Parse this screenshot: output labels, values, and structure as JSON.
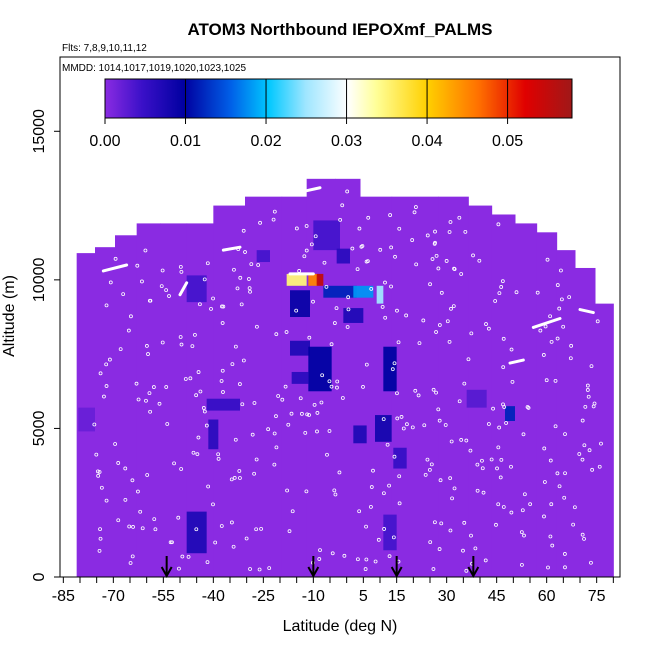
{
  "chart_data": {
    "type": "heatmap",
    "title": "ATOM3 Northbound IEPOXmf_PALMS",
    "subtitle_flights": "Flts: 7,8,9,10,11,12",
    "subtitle_dates": "MMDD: 1014,1017,1019,1020,1023,1025",
    "xlabel": "Latitude (deg N)",
    "ylabel": "Altitude (m)",
    "xlim": [
      -86,
      82
    ],
    "ylim": [
      0,
      17500
    ],
    "x_tick_labels": [
      "-85",
      "-70",
      "-55",
      "-40",
      "-25",
      "-10",
      "5",
      "15",
      "30",
      "45",
      "60",
      "75"
    ],
    "x_tick_values": [
      -85,
      -70,
      -55,
      -40,
      -25,
      -10,
      5,
      15,
      30,
      45,
      60,
      75
    ],
    "y_tick_labels": [
      "0",
      "5000",
      "10000",
      "15000"
    ],
    "y_tick_values": [
      0,
      5000,
      10000,
      15000
    ],
    "colorbar": {
      "range": [
        0,
        0.058
      ],
      "tick_labels": [
        "0.00",
        "0.01",
        "0.02",
        "0.03",
        "0.04",
        "0.05"
      ],
      "tick_values": [
        0,
        0.01,
        0.02,
        0.03,
        0.04,
        0.05
      ]
    },
    "background_value": 0.0,
    "background_color": "#8a2be2",
    "arrows_latitude": [
      -54,
      -10,
      15,
      38
    ],
    "data_envelope": [
      {
        "lat": -78,
        "alt_top": 10900
      },
      {
        "lat": -73,
        "alt_top": 11100
      },
      {
        "lat": -66,
        "alt_top": 11500
      },
      {
        "lat": -60,
        "alt_top": 11900
      },
      {
        "lat": -52,
        "alt_top": 11900
      },
      {
        "lat": -44,
        "alt_top": 11900
      },
      {
        "lat": -36,
        "alt_top": 12500
      },
      {
        "lat": -25,
        "alt_top": 12800
      },
      {
        "lat": -14,
        "alt_top": 12800
      },
      {
        "lat": -10,
        "alt_top": 13400
      },
      {
        "lat": 3,
        "alt_top": 13400
      },
      {
        "lat": 5,
        "alt_top": 12800
      },
      {
        "lat": 22,
        "alt_top": 12800
      },
      {
        "lat": 33,
        "alt_top": 12800
      },
      {
        "lat": 40,
        "alt_top": 12500
      },
      {
        "lat": 47,
        "alt_top": 12200
      },
      {
        "lat": 54,
        "alt_top": 11900
      },
      {
        "lat": 60,
        "alt_top": 11600
      },
      {
        "lat": 66,
        "alt_top": 11000
      },
      {
        "lat": 71,
        "alt_top": 10400
      },
      {
        "lat": 78,
        "alt_top": 9200
      }
    ],
    "hot_cells": [
      {
        "lat": -45,
        "alt": 9700,
        "w": 6,
        "h": 900,
        "value": 0.004
      },
      {
        "lat": -40,
        "alt": 4800,
        "w": 3,
        "h": 1000,
        "value": 0.006
      },
      {
        "lat": -45,
        "alt": 1500,
        "w": 6,
        "h": 1400,
        "value": 0.007
      },
      {
        "lat": -37,
        "alt": 5800,
        "w": 10,
        "h": 400,
        "value": 0.005
      },
      {
        "lat": -25,
        "alt": 10800,
        "w": 4,
        "h": 400,
        "value": 0.004
      },
      {
        "lat": -15,
        "alt": 10000,
        "w": 6,
        "h": 400,
        "value": 0.035
      },
      {
        "lat": -10,
        "alt": 10000,
        "w": 3,
        "h": 400,
        "value": 0.045
      },
      {
        "lat": -8,
        "alt": 10000,
        "w": 2,
        "h": 400,
        "value": 0.055
      },
      {
        "lat": -14,
        "alt": 9200,
        "w": 6,
        "h": 900,
        "value": 0.009
      },
      {
        "lat": -14,
        "alt": 7700,
        "w": 6,
        "h": 500,
        "value": 0.007
      },
      {
        "lat": -14,
        "alt": 6700,
        "w": 5,
        "h": 400,
        "value": 0.006
      },
      {
        "lat": -8,
        "alt": 7000,
        "w": 7,
        "h": 1500,
        "value": 0.01
      },
      {
        "lat": -6,
        "alt": 11500,
        "w": 8,
        "h": 1000,
        "value": 0.004
      },
      {
        "lat": -1,
        "alt": 10800,
        "w": 4,
        "h": 500,
        "value": 0.006
      },
      {
        "lat": -2,
        "alt": 9600,
        "w": 10,
        "h": 400,
        "value": 0.012
      },
      {
        "lat": 5,
        "alt": 9600,
        "w": 6,
        "h": 400,
        "value": 0.018
      },
      {
        "lat": 10,
        "alt": 9500,
        "w": 2,
        "h": 600,
        "value": 0.025
      },
      {
        "lat": 2,
        "alt": 8800,
        "w": 6,
        "h": 500,
        "value": 0.007
      },
      {
        "lat": 13,
        "alt": 7000,
        "w": 4,
        "h": 1500,
        "value": 0.01
      },
      {
        "lat": 11,
        "alt": 5000,
        "w": 5,
        "h": 900,
        "value": 0.008
      },
      {
        "lat": 4,
        "alt": 4800,
        "w": 4,
        "h": 600,
        "value": 0.007
      },
      {
        "lat": 16,
        "alt": 4000,
        "w": 4,
        "h": 700,
        "value": 0.005
      },
      {
        "lat": 49,
        "alt": 5500,
        "w": 3,
        "h": 500,
        "value": 0.012
      },
      {
        "lat": 13,
        "alt": 1500,
        "w": 4,
        "h": 1200,
        "value": 0.004
      },
      {
        "lat": -78,
        "alt": 5300,
        "w": 5,
        "h": 800,
        "value": 0.002
      },
      {
        "lat": 39,
        "alt": 6000,
        "w": 6,
        "h": 600,
        "value": 0.003
      }
    ],
    "flight_track_segments": [
      {
        "lat1": -73,
        "alt1": 10300,
        "lat2": -66,
        "alt2": 10500
      },
      {
        "lat1": -50,
        "alt1": 9500,
        "lat2": -48,
        "alt2": 9900
      },
      {
        "lat1": -37,
        "alt1": 11000,
        "lat2": -32,
        "alt2": 11100
      },
      {
        "lat1": -17,
        "alt1": 10200,
        "lat2": -10,
        "alt2": 10200
      },
      {
        "lat1": -12,
        "alt1": 13000,
        "lat2": -8,
        "alt2": 13100
      },
      {
        "lat1": 49,
        "alt1": 7200,
        "lat2": 53,
        "alt2": 7300
      },
      {
        "lat1": 56,
        "alt1": 8400,
        "lat2": 64,
        "alt2": 8700
      },
      {
        "lat1": 70,
        "alt1": 9000,
        "lat2": 74,
        "alt2": 8900
      }
    ]
  }
}
